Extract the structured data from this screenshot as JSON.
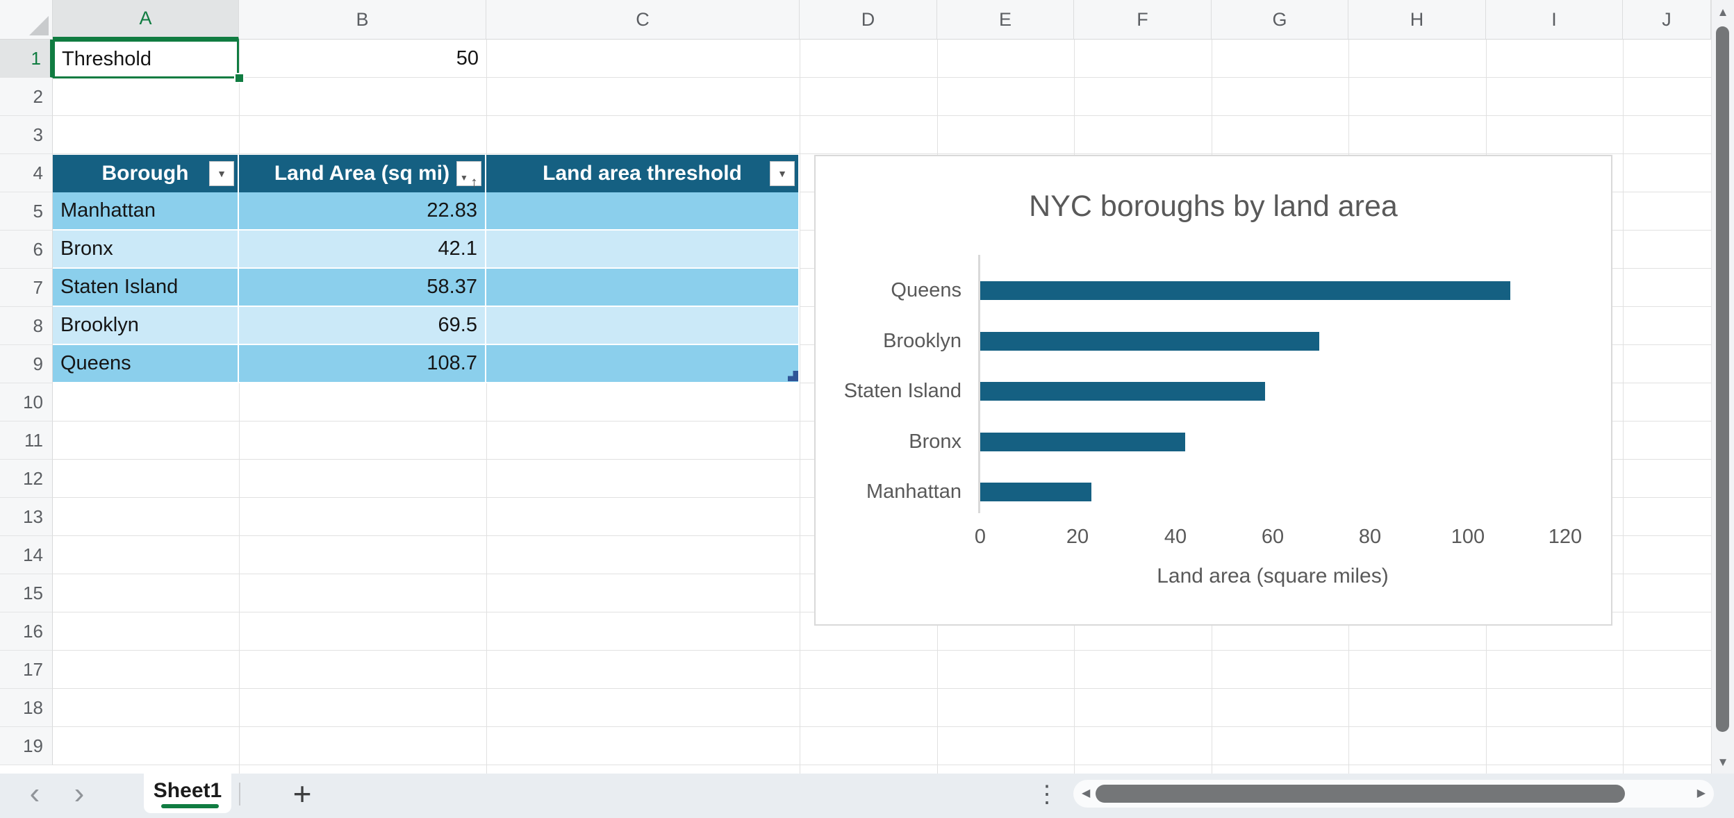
{
  "spreadsheet": {
    "column_headers": [
      "A",
      "B",
      "C",
      "D",
      "E",
      "F",
      "G",
      "H",
      "I",
      "J"
    ],
    "selected_column": "A",
    "row_headers": [
      "1",
      "2",
      "3",
      "4",
      "5",
      "6",
      "7",
      "8",
      "9",
      "10",
      "11",
      "12",
      "13",
      "14",
      "15",
      "16",
      "17",
      "18",
      "19"
    ],
    "selected_row": "1",
    "cells": {
      "A1": "Threshold",
      "B1": "50"
    },
    "table": {
      "header": [
        {
          "label": "Borough",
          "control": "filter"
        },
        {
          "label": "Land Area (sq mi)",
          "control": "filter-sort-asc"
        },
        {
          "label": "Land area threshold",
          "control": "filter"
        }
      ],
      "rows": [
        [
          "Manhattan",
          "22.83",
          ""
        ],
        [
          "Bronx",
          "42.1",
          ""
        ],
        [
          "Staten Island",
          "58.37",
          ""
        ],
        [
          "Brooklyn",
          "69.5",
          ""
        ],
        [
          "Queens",
          "108.7",
          ""
        ]
      ]
    }
  },
  "chart_data": {
    "type": "bar",
    "orientation": "horizontal",
    "title": "NYC boroughs by land area",
    "categories": [
      "Queens",
      "Brooklyn",
      "Staten Island",
      "Bronx",
      "Manhattan"
    ],
    "values": [
      108.7,
      69.5,
      58.37,
      42.1,
      22.83
    ],
    "xlabel": "Land area (square miles)",
    "ylabel": "",
    "xlim": [
      0,
      120
    ],
    "xticks": [
      0,
      20,
      40,
      60,
      80,
      100,
      120
    ],
    "grid": false,
    "legend": false,
    "bar_color": "#156082"
  },
  "tab_bar": {
    "active_sheet": "Sheet1",
    "add_label": "+"
  },
  "icons": {
    "nav_prev": "‹",
    "nav_next": "›",
    "scroll_up": "▲",
    "scroll_down": "▼",
    "scroll_left": "◀",
    "scroll_right": "▶",
    "drag_handle": "⋮",
    "filter": "▼",
    "sort_asc": "↑"
  },
  "colors": {
    "accent_green": "#107C41",
    "table_header": "#156082",
    "band_dark": "#8BCFEC",
    "band_light": "#CBE9F8",
    "bar": "#156082",
    "chart_text": "#595959"
  }
}
